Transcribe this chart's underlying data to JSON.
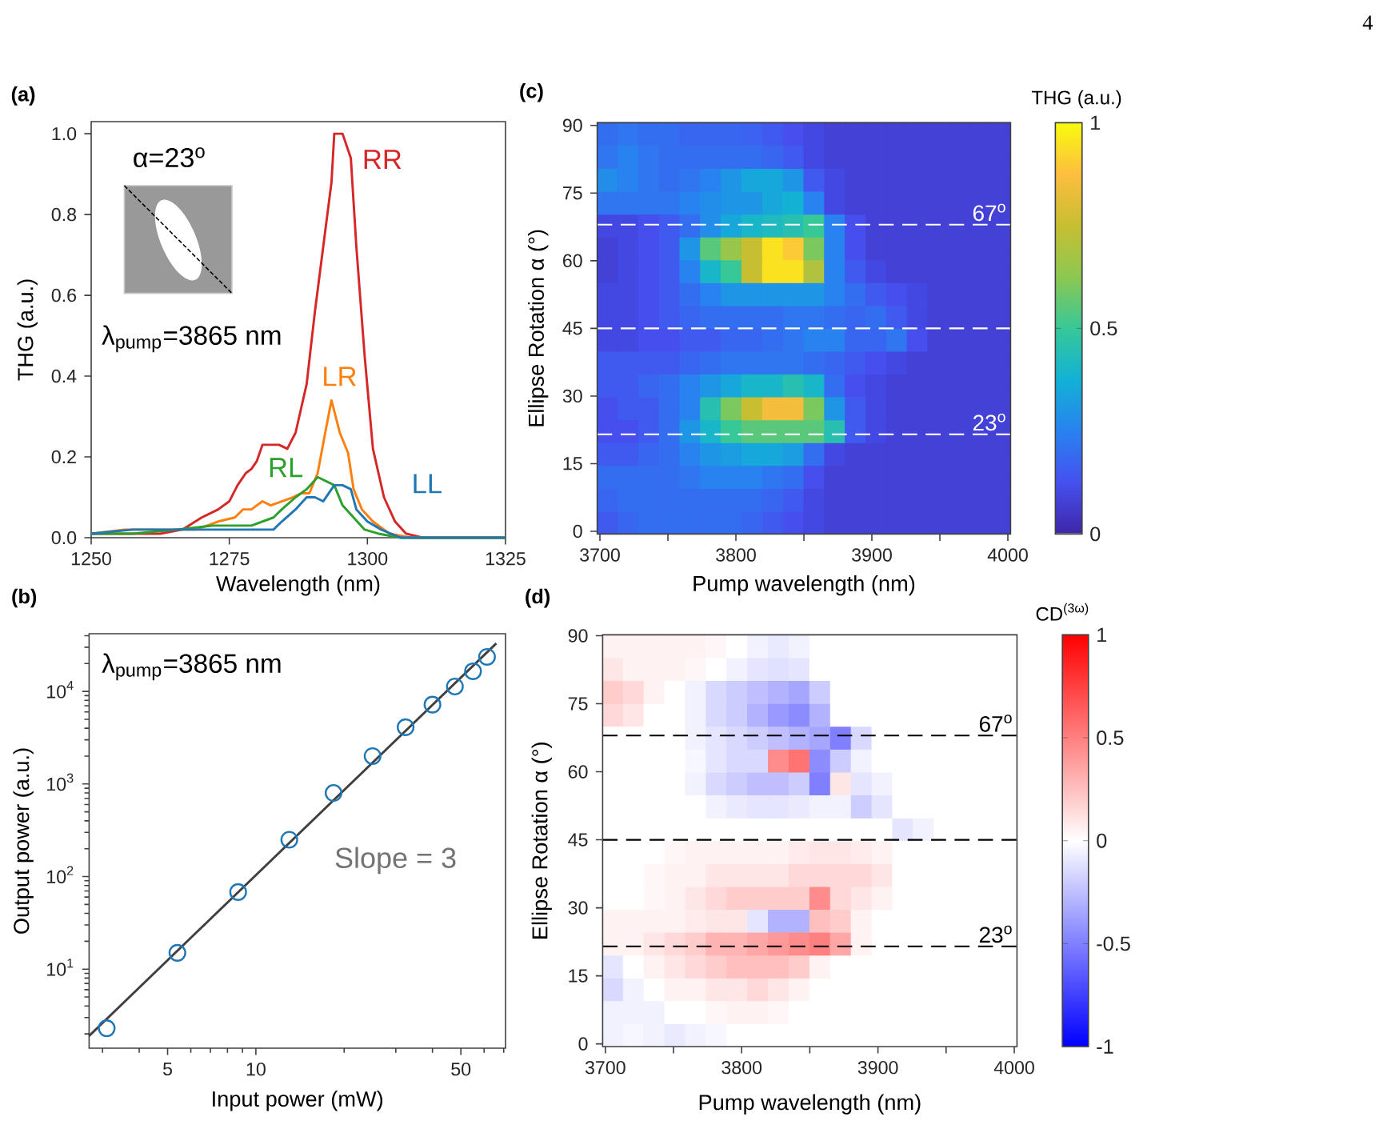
{
  "chart_data": [
    {
      "type": "line",
      "title": "(a)",
      "xlabel": "Wavelength (nm)",
      "ylabel": "THG (a.u.)",
      "xlim": [
        1250,
        1325
      ],
      "ylim": [
        0,
        1.03
      ],
      "xticks": [
        1250,
        1275,
        1300,
        1325
      ],
      "yticks": [
        {
          "value": 0,
          "label": "0.0"
        },
        0.2,
        0.4,
        0.6,
        0.8,
        {
          "value": 1,
          "label": "1.0"
        }
      ],
      "annotations": [
        "α=23$^{o}$",
        "λ$_{pump}$=3865 nm",
        "4"
      ],
      "series": [
        {
          "name": "RR",
          "color": "#d62728",
          "x": [
            1250,
            1256,
            1262.5,
            1266.5,
            1270,
            1273,
            1275,
            1276.5,
            1278,
            1279,
            1280,
            1281,
            1282.5,
            1284,
            1285.5,
            1287,
            1289,
            1290.5,
            1292,
            1293.5,
            1294,
            1295.5,
            1297,
            1298,
            1299.5,
            1301,
            1303,
            1305,
            1307,
            1310,
            1315.5,
            1325
          ],
          "values": [
            0.01,
            0.01,
            0.01,
            0.02,
            0.05,
            0.07,
            0.09,
            0.13,
            0.16,
            0.17,
            0.19,
            0.23,
            0.23,
            0.23,
            0.22,
            0.26,
            0.38,
            0.56,
            0.72,
            0.88,
            1.0,
            1.0,
            0.94,
            0.72,
            0.45,
            0.22,
            0.1,
            0.04,
            0.01,
            0,
            0,
            0
          ]
        },
        {
          "name": "LR",
          "color": "#ff7f0e",
          "x": [
            1250,
            1256,
            1262.5,
            1269,
            1273,
            1276,
            1277.5,
            1279,
            1281,
            1282.5,
            1284.5,
            1286.5,
            1288,
            1289.5,
            1291,
            1292.5,
            1293.5,
            1295,
            1296.5,
            1297.5,
            1299,
            1301,
            1304,
            1308,
            1325
          ],
          "values": [
            0.01,
            0.02,
            0.02,
            0.02,
            0.04,
            0.05,
            0.07,
            0.07,
            0.09,
            0.08,
            0.09,
            0.1,
            0.11,
            0.11,
            0.16,
            0.27,
            0.34,
            0.26,
            0.21,
            0.12,
            0.07,
            0.04,
            0.01,
            0,
            0
          ]
        },
        {
          "name": "RL",
          "color": "#2ca02c",
          "x": [
            1250,
            1257.5,
            1265.5,
            1272,
            1276,
            1279,
            1281,
            1283,
            1284.5,
            1287,
            1289,
            1291,
            1292.5,
            1294,
            1295.5,
            1297.5,
            1299.5,
            1302,
            1306,
            1325
          ],
          "values": [
            0.01,
            0.01,
            0.02,
            0.03,
            0.03,
            0.03,
            0.04,
            0.05,
            0.07,
            0.1,
            0.12,
            0.15,
            0.14,
            0.13,
            0.08,
            0.05,
            0.02,
            0.01,
            0,
            0
          ]
        },
        {
          "name": "LL",
          "color": "#1f77b4",
          "x": [
            1250,
            1257.5,
            1264.5,
            1270,
            1274,
            1277,
            1280,
            1283,
            1284.5,
            1287,
            1289,
            1290.5,
            1292,
            1294,
            1295.5,
            1297,
            1298,
            1300,
            1302.5,
            1306,
            1325
          ],
          "values": [
            0.01,
            0.02,
            0.02,
            0.02,
            0.02,
            0.02,
            0.02,
            0.02,
            0.04,
            0.07,
            0.1,
            0.1,
            0.09,
            0.13,
            0.13,
            0.12,
            0.07,
            0.04,
            0.02,
            0,
            0
          ]
        }
      ]
    },
    {
      "type": "scatter",
      "title": "(b)",
      "xlabel": "Input power (mW)",
      "ylabel": "Output power (a.u.)",
      "log": "xy",
      "marker": "circle",
      "xlim": [
        2.7,
        71
      ],
      "ylim": [
        1.4,
        42000
      ],
      "xticks": [
        {
          "value": 3,
          "label": null
        },
        {
          "value": 4,
          "label": null
        },
        5,
        {
          "value": 6,
          "label": null
        },
        {
          "value": 7,
          "label": null
        },
        {
          "value": 8,
          "label": null
        },
        {
          "value": 9,
          "label": null
        },
        10,
        {
          "value": 20,
          "label": null
        },
        {
          "value": 30,
          "label": null
        },
        {
          "value": 40,
          "label": null
        },
        50,
        {
          "value": 60,
          "label": null
        },
        {
          "value": 70,
          "label": null
        }
      ],
      "yticks": [
        {
          "value": 2,
          "label": null
        },
        {
          "value": 3,
          "label": null
        },
        {
          "value": 4,
          "label": null
        },
        {
          "value": 5,
          "label": null
        },
        {
          "value": 6,
          "label": null
        },
        {
          "value": 7,
          "label": null
        },
        {
          "value": 8,
          "label": null
        },
        {
          "value": 9,
          "label": null
        },
        {
          "value": 10,
          "label": "10$^{1}$"
        },
        {
          "value": 20,
          "label": null
        },
        {
          "value": 30,
          "label": null
        },
        {
          "value": 40,
          "label": null
        },
        {
          "value": 50,
          "label": null
        },
        {
          "value": 60,
          "label": null
        },
        {
          "value": 70,
          "label": null
        },
        {
          "value": 80,
          "label": null
        },
        {
          "value": 90,
          "label": null
        },
        {
          "value": 100,
          "label": "10$^{2}$"
        },
        {
          "value": 200,
          "label": null
        },
        {
          "value": 300,
          "label": null
        },
        {
          "value": 400,
          "label": null
        },
        {
          "value": 500,
          "label": null
        },
        {
          "value": 600,
          "label": null
        },
        {
          "value": 700,
          "label": null
        },
        {
          "value": 800,
          "label": null
        },
        {
          "value": 900,
          "label": null
        },
        {
          "value": 1000,
          "label": "10$^{3}$"
        },
        {
          "value": 2000,
          "label": null
        },
        {
          "value": 3000,
          "label": null
        },
        {
          "value": 4000,
          "label": null
        },
        {
          "value": 5000,
          "label": null
        },
        {
          "value": 6000,
          "label": null
        },
        {
          "value": 7000,
          "label": null
        },
        {
          "value": 8000,
          "label": null
        },
        {
          "value": 9000,
          "label": null
        },
        {
          "value": 10000,
          "label": "10$^{4}$"
        },
        {
          "value": 20000,
          "label": null
        },
        {
          "value": 30000,
          "label": null
        },
        {
          "value": 40000,
          "label": null
        }
      ],
      "annotations": [
        "λ$_{pump}$=3865 nm",
        "Slope = 3"
      ],
      "series": [
        {
          "type": "line",
          "marker": "none",
          "color": "#404040",
          "x": [
            2.7,
            66
          ],
          "values": [
            1.9,
            33000
          ]
        },
        {
          "color": "#1f77b4",
          "x": [
            3.1,
            5.4,
            8.7,
            13,
            18.4,
            25,
            32.4,
            40,
            47.7,
            55,
            61.4
          ],
          "values": [
            2.3,
            15,
            68,
            250,
            800,
            2000,
            4100,
            7200,
            11300,
            16500,
            23600
          ]
        }
      ]
    },
    {
      "type": "heatmap",
      "title": "(c)",
      "xlabel": "Pump wavelength (nm)",
      "ylabel": "Ellipse Rotation α (°)",
      "clabel": "THG (a.u.)",
      "xlim": [
        3698,
        4002
      ],
      "ylim": [
        -0.6,
        90.6
      ],
      "xticks": [
        3700,
        {
          "value": 3750,
          "label": null
        },
        3800,
        {
          "value": 3850,
          "label": null
        },
        3900,
        {
          "value": 3950,
          "label": null
        },
        4000
      ],
      "yticks": [
        0,
        15,
        30,
        45,
        60,
        75,
        90
      ],
      "clim": [
        0,
        1
      ],
      "cticks": [
        0,
        0.5,
        1
      ],
      "ref_lines": [
        {
          "axis": "y",
          "value": 68,
          "label": "67$^{o}$",
          "color": "#ffffff",
          "line_style": "dashed"
        },
        {
          "axis": "y",
          "value": 45,
          "color": "#ffffff",
          "line_style": "dashed"
        },
        {
          "axis": "y",
          "value": 21.5,
          "label": "23$^{o}$",
          "color": "#ffffff",
          "line_style": "dashed"
        }
      ],
      "x": [
        3705.6,
        3720.8,
        3736,
        3751.2,
        3766.4,
        3781.6,
        3796.8,
        3812,
        3827.2,
        3842.4,
        3857.6,
        3872.8,
        3888,
        3903.2,
        3918.4,
        3933.6,
        3948.8,
        3964,
        3979.2,
        3994.4
      ],
      "y": [
        88.07,
        83,
        77.93,
        72.87,
        67.8,
        62.73,
        57.67,
        52.6,
        47.53,
        42.47,
        37.4,
        32.33,
        27.27,
        22.2,
        17.13,
        12.07,
        7,
        1.93
      ],
      "cells": [
        [
          0.2,
          0.22,
          0.2,
          0.2,
          0.18,
          0.18,
          0.18,
          0.17,
          0.15,
          0.12,
          0.1,
          0.08,
          0.08,
          0.08,
          0.08,
          0.08,
          0.08,
          0.08,
          0.08,
          0.08
        ],
        [
          0.22,
          0.25,
          0.22,
          0.2,
          0.2,
          0.2,
          0.2,
          0.2,
          0.18,
          0.15,
          0.1,
          0.08,
          0.08,
          0.08,
          0.08,
          0.08,
          0.08,
          0.08,
          0.08,
          0.08
        ],
        [
          0.28,
          0.25,
          0.22,
          0.2,
          0.22,
          0.25,
          0.3,
          0.35,
          0.35,
          0.3,
          0.15,
          0.1,
          0.08,
          0.08,
          0.08,
          0.08,
          0.08,
          0.08,
          0.08,
          0.08
        ],
        [
          0.22,
          0.22,
          0.22,
          0.22,
          0.25,
          0.28,
          0.3,
          0.3,
          0.35,
          0.38,
          0.25,
          0.1,
          0.08,
          0.08,
          0.08,
          0.08,
          0.08,
          0.08,
          0.08,
          0.08
        ],
        [
          0.1,
          0.1,
          0.12,
          0.15,
          0.2,
          0.28,
          0.35,
          0.4,
          0.42,
          0.45,
          0.5,
          0.25,
          0.12,
          0.08,
          0.08,
          0.08,
          0.08,
          0.08,
          0.08,
          0.08
        ],
        [
          0.08,
          0.1,
          0.12,
          0.15,
          0.3,
          0.55,
          0.65,
          0.75,
          0.95,
          0.9,
          0.6,
          0.25,
          0.12,
          0.08,
          0.08,
          0.08,
          0.08,
          0.08,
          0.08,
          0.08
        ],
        [
          0.08,
          0.1,
          0.12,
          0.15,
          0.25,
          0.4,
          0.5,
          0.75,
          0.95,
          0.95,
          0.7,
          0.25,
          0.15,
          0.1,
          0.08,
          0.08,
          0.08,
          0.08,
          0.08,
          0.08
        ],
        [
          0.1,
          0.1,
          0.12,
          0.15,
          0.2,
          0.25,
          0.3,
          0.3,
          0.3,
          0.3,
          0.3,
          0.25,
          0.2,
          0.15,
          0.12,
          0.1,
          0.08,
          0.08,
          0.08,
          0.08
        ],
        [
          0.1,
          0.1,
          0.12,
          0.15,
          0.18,
          0.2,
          0.2,
          0.2,
          0.2,
          0.22,
          0.22,
          0.2,
          0.18,
          0.2,
          0.15,
          0.1,
          0.08,
          0.08,
          0.08,
          0.08
        ],
        [
          0.1,
          0.1,
          0.12,
          0.12,
          0.15,
          0.15,
          0.18,
          0.18,
          0.2,
          0.22,
          0.25,
          0.25,
          0.18,
          0.18,
          0.22,
          0.12,
          0.08,
          0.08,
          0.08,
          0.08
        ],
        [
          0.15,
          0.15,
          0.15,
          0.15,
          0.18,
          0.2,
          0.22,
          0.22,
          0.22,
          0.22,
          0.2,
          0.18,
          0.15,
          0.12,
          0.1,
          0.08,
          0.08,
          0.08,
          0.08,
          0.08
        ],
        [
          0.15,
          0.15,
          0.18,
          0.2,
          0.25,
          0.3,
          0.35,
          0.4,
          0.4,
          0.45,
          0.4,
          0.2,
          0.12,
          0.1,
          0.08,
          0.08,
          0.08,
          0.08,
          0.08,
          0.08
        ],
        [
          0.12,
          0.15,
          0.15,
          0.2,
          0.25,
          0.45,
          0.6,
          0.75,
          0.85,
          0.85,
          0.6,
          0.3,
          0.15,
          0.1,
          0.08,
          0.08,
          0.08,
          0.08,
          0.08,
          0.08
        ],
        [
          0.12,
          0.12,
          0.15,
          0.2,
          0.3,
          0.4,
          0.5,
          0.55,
          0.55,
          0.55,
          0.55,
          0.45,
          0.15,
          0.1,
          0.08,
          0.08,
          0.08,
          0.08,
          0.08,
          0.08
        ],
        [
          0.15,
          0.15,
          0.18,
          0.2,
          0.25,
          0.3,
          0.32,
          0.35,
          0.35,
          0.32,
          0.2,
          0.1,
          0.08,
          0.08,
          0.08,
          0.08,
          0.08,
          0.08,
          0.08,
          0.08
        ],
        [
          0.2,
          0.2,
          0.2,
          0.2,
          0.22,
          0.25,
          0.25,
          0.25,
          0.22,
          0.2,
          0.12,
          0.08,
          0.08,
          0.08,
          0.08,
          0.08,
          0.08,
          0.08,
          0.08,
          0.08
        ],
        [
          0.18,
          0.2,
          0.2,
          0.2,
          0.2,
          0.2,
          0.2,
          0.2,
          0.18,
          0.15,
          0.1,
          0.08,
          0.08,
          0.08,
          0.08,
          0.08,
          0.08,
          0.08,
          0.08,
          0.08
        ],
        [
          0.15,
          0.18,
          0.2,
          0.2,
          0.2,
          0.2,
          0.2,
          0.18,
          0.15,
          0.12,
          0.1,
          0.08,
          0.08,
          0.08,
          0.08,
          0.08,
          0.08,
          0.08,
          0.08,
          0.08
        ]
      ]
    },
    {
      "type": "heatmap",
      "title": "(d)",
      "xlabel": "Pump wavelength (nm)",
      "ylabel": "Ellipse Rotation α (°)",
      "clabel": "CD$^{(3ω)}$",
      "xlim": [
        3698,
        4002
      ],
      "ylim": [
        -0.6,
        90.2
      ],
      "xticks": [
        3700,
        {
          "value": 3750,
          "label": null
        },
        3800,
        {
          "value": 3850,
          "label": null
        },
        3900,
        {
          "value": 3950,
          "label": null
        },
        4000
      ],
      "yticks": [
        0,
        15,
        30,
        45,
        60,
        75,
        90
      ],
      "clim": [
        -1,
        1
      ],
      "cticks": [
        -1,
        -0.5,
        0,
        0.5,
        1
      ],
      "ref_lines": [
        {
          "axis": "y",
          "value": 68,
          "label": "67$^{o}$",
          "color": "#000000",
          "line_style": "dashed"
        },
        {
          "axis": "y",
          "value": 45,
          "color": "#000000",
          "line_style": "dashed"
        },
        {
          "axis": "y",
          "value": 21.5,
          "label": "23$^{o}$",
          "color": "#000000",
          "line_style": "dashed"
        }
      ],
      "x": [
        3705.6,
        3720.8,
        3736,
        3751.2,
        3766.4,
        3781.6,
        3796.8,
        3812,
        3827.2,
        3842.4,
        3857.6,
        3872.8,
        3888,
        3903.2,
        3918.4,
        3933.6,
        3948.8,
        3964,
        3979.2,
        3994.4
      ],
      "y": [
        87.68,
        82.63,
        77.59,
        72.54,
        67.5,
        62.46,
        57.41,
        52.37,
        47.32,
        42.28,
        37.23,
        32.19,
        27.14,
        22.1,
        17.06,
        12.01,
        6.97,
        1.92
      ],
      "cells": [
        [
          0.05,
          0.05,
          0.05,
          0.05,
          0.05,
          0.03,
          0,
          -0.05,
          -0.08,
          -0.05,
          0,
          0,
          0,
          0,
          0,
          0,
          0,
          0,
          0,
          0
        ],
        [
          0.1,
          0.05,
          0.05,
          0.05,
          0.03,
          0,
          -0.05,
          -0.1,
          -0.12,
          -0.1,
          0,
          0,
          0,
          0,
          0,
          0,
          0,
          0,
          0,
          0
        ],
        [
          0.2,
          0.15,
          0.05,
          0,
          -0.05,
          -0.15,
          -0.2,
          -0.25,
          -0.3,
          -0.35,
          -0.2,
          0,
          0,
          0,
          0,
          0,
          0,
          0,
          0,
          0
        ],
        [
          0.15,
          0.1,
          0,
          0,
          -0.05,
          -0.15,
          -0.2,
          -0.3,
          -0.4,
          -0.45,
          -0.3,
          0,
          0,
          0,
          0,
          0,
          0,
          0,
          0,
          0
        ],
        [
          0,
          0,
          0,
          0,
          -0.05,
          -0.1,
          -0.15,
          -0.2,
          -0.25,
          -0.3,
          -0.35,
          -0.5,
          -0.15,
          0,
          0,
          0,
          0,
          0,
          0,
          0
        ],
        [
          0,
          0,
          0,
          0,
          -0.03,
          -0.1,
          -0.15,
          -0.15,
          0.45,
          0.55,
          -0.45,
          -0.2,
          -0.05,
          0,
          0,
          0,
          0,
          0,
          0,
          0
        ],
        [
          0,
          0,
          0,
          0,
          -0.05,
          -0.15,
          -0.2,
          -0.25,
          -0.25,
          -0.2,
          -0.5,
          0.1,
          -0.1,
          -0.05,
          0,
          0,
          0,
          0,
          0,
          0
        ],
        [
          0,
          0,
          0,
          0,
          0,
          -0.05,
          -0.08,
          -0.1,
          -0.1,
          -0.08,
          -0.05,
          -0.05,
          -0.2,
          -0.1,
          0,
          0,
          0,
          0,
          0,
          0
        ],
        [
          0,
          0,
          0,
          0,
          0,
          0,
          0,
          0,
          0,
          0,
          0,
          0,
          0,
          0,
          -0.1,
          -0.05,
          0,
          0,
          0,
          0
        ],
        [
          0,
          0,
          0,
          0.03,
          0.05,
          0.05,
          0.05,
          0.05,
          0.05,
          0.08,
          0.1,
          0.1,
          0.08,
          0.05,
          0,
          0,
          0,
          0,
          0,
          0
        ],
        [
          0,
          0,
          0.03,
          0.05,
          0.05,
          0.1,
          0.1,
          0.1,
          0.1,
          0.15,
          0.15,
          0.15,
          0.15,
          0.1,
          0,
          0,
          0,
          0,
          0,
          0
        ],
        [
          0,
          0,
          0.03,
          0.05,
          0.1,
          0.15,
          0.2,
          0.2,
          0.2,
          0.2,
          0.45,
          0.15,
          0.1,
          0.05,
          0,
          0,
          0,
          0,
          0,
          0
        ],
        [
          0.05,
          0.05,
          0.05,
          0.05,
          0.08,
          0.1,
          0.1,
          -0.1,
          -0.3,
          -0.3,
          0.25,
          0.2,
          0.05,
          0,
          0,
          0,
          0,
          0,
          0,
          0
        ],
        [
          0.05,
          0.05,
          0.1,
          0.15,
          0.2,
          0.3,
          0.3,
          0.35,
          0.4,
          0.45,
          0.5,
          0.35,
          0.05,
          0,
          0,
          0,
          0,
          0,
          0,
          0
        ],
        [
          -0.1,
          0,
          0.05,
          0.1,
          0.15,
          0.2,
          0.25,
          0.25,
          0.25,
          0.2,
          0.05,
          0,
          0,
          0,
          0,
          0,
          0,
          0,
          0,
          0
        ],
        [
          -0.15,
          -0.05,
          0,
          0.05,
          0.05,
          0.1,
          0.1,
          0.15,
          0.1,
          0.05,
          0,
          0,
          0,
          0,
          0,
          0,
          0,
          0,
          0,
          0
        ],
        [
          -0.05,
          -0.05,
          -0.05,
          0,
          0,
          0.03,
          0.05,
          0.05,
          0.03,
          0,
          0,
          0,
          0,
          0,
          0,
          0,
          0,
          0,
          0,
          0
        ],
        [
          -0.05,
          -0.03,
          -0.05,
          -0.08,
          -0.05,
          -0.03,
          0,
          0,
          0,
          0,
          0,
          0,
          0,
          0,
          0,
          0,
          0,
          0,
          0,
          0
        ]
      ]
    }
  ]
}
